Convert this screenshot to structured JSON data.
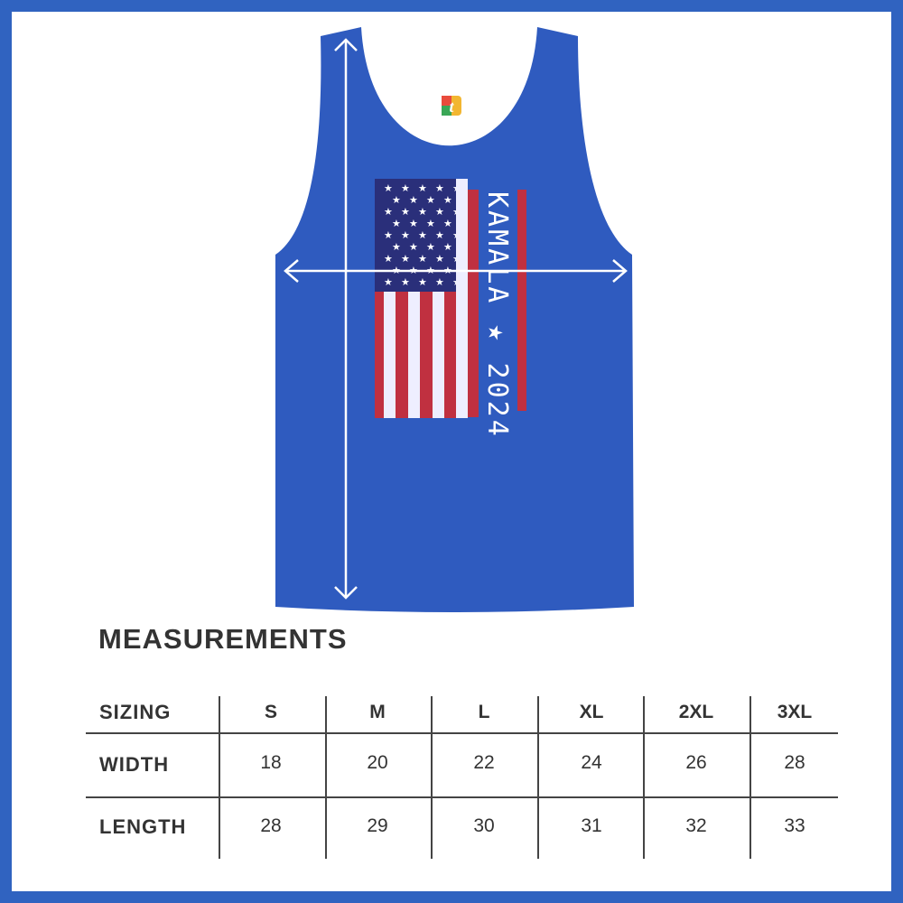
{
  "product": {
    "print_text": "KAMALA ★ 2024",
    "garment_color": "#2f5bbf",
    "frame_color": "#3063c0"
  },
  "measurements": {
    "title": "MEASUREMENTS",
    "header": [
      "SIZING",
      "S",
      "M",
      "L",
      "XL",
      "2XL",
      "3XL"
    ],
    "rows": [
      {
        "label": "WIDTH",
        "values": [
          "18",
          "20",
          "22",
          "24",
          "26",
          "28"
        ]
      },
      {
        "label": "LENGTH",
        "values": [
          "28",
          "29",
          "30",
          "31",
          "32",
          "33"
        ]
      }
    ]
  }
}
